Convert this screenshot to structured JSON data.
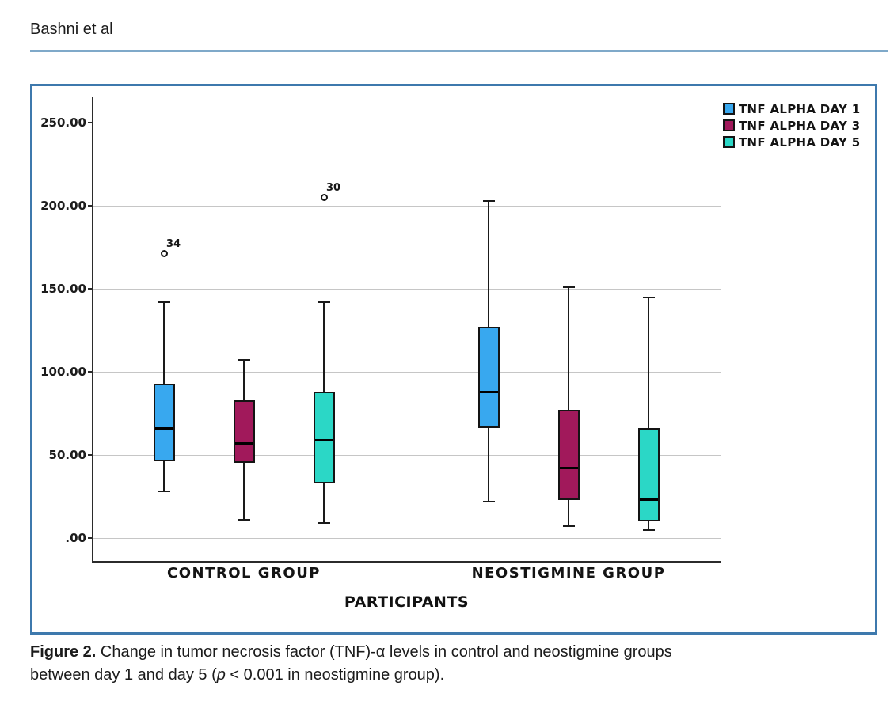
{
  "page": {
    "running_head": "Bashni et al"
  },
  "figure": {
    "caption": {
      "label": "Figure 2.",
      "line1_rest": " Change in tumor necrosis factor (TNF)-α levels in control and neostigmine groups",
      "line2_before_p": "between day 1 and day 5 (",
      "p_symbol": "p",
      "line2_after_p": " < 0.001 in neostigmine group)."
    }
  },
  "chart_data": {
    "type": "boxplot",
    "title": "",
    "xlabel": "PARTICIPANTS",
    "ylabel": "",
    "grid": true,
    "legend_position": "top-right",
    "categories": [
      "CONTROL GROUP",
      "NEOSTIGMINE GROUP"
    ],
    "y_axis": {
      "range": [
        -15,
        265
      ],
      "ticks": [
        {
          "label": "250.00",
          "value": 250
        },
        {
          "label": "200.00",
          "value": 200
        },
        {
          "label": "150.00",
          "value": 150
        },
        {
          "label": "100.00",
          "value": 100
        },
        {
          "label": "50.00",
          "value": 50
        },
        {
          "label": ".00",
          "value": 0
        }
      ]
    },
    "legend": [
      {
        "label": "TNF ALPHA DAY 1",
        "color": "#38A8EF"
      },
      {
        "label": "TNF ALPHA DAY 3",
        "color": "#A1195B"
      },
      {
        "label": "TNF ALPHA DAY 5",
        "color": "#2BD7C6"
      }
    ],
    "series": [
      {
        "name": "TNF ALPHA DAY 1",
        "color": "#38A8EF",
        "boxes": [
          {
            "group": "CONTROL GROUP",
            "whisker_low": 28,
            "q1": 46,
            "median": 66,
            "q3": 93,
            "whisker_high": 142,
            "outliers": [
              {
                "value": 171,
                "label": "34"
              }
            ]
          },
          {
            "group": "NEOSTIGMINE GROUP",
            "whisker_low": 22,
            "q1": 66,
            "median": 88,
            "q3": 127,
            "whisker_high": 203,
            "outliers": []
          }
        ]
      },
      {
        "name": "TNF ALPHA DAY 3",
        "color": "#A1195B",
        "boxes": [
          {
            "group": "CONTROL GROUP",
            "whisker_low": 11,
            "q1": 45,
            "median": 57,
            "q3": 83,
            "whisker_high": 107,
            "outliers": []
          },
          {
            "group": "NEOSTIGMINE GROUP",
            "whisker_low": 7,
            "q1": 23,
            "median": 42,
            "q3": 77,
            "whisker_high": 151,
            "outliers": []
          }
        ]
      },
      {
        "name": "TNF ALPHA DAY 5",
        "color": "#2BD7C6",
        "boxes": [
          {
            "group": "CONTROL GROUP",
            "whisker_low": 9,
            "q1": 33,
            "median": 59,
            "q3": 88,
            "whisker_high": 142,
            "outliers": [
              {
                "value": 205,
                "label": "30"
              }
            ]
          },
          {
            "group": "NEOSTIGMINE GROUP",
            "whisker_low": 5,
            "q1": 10,
            "median": 23,
            "q3": 66,
            "whisker_high": 145,
            "outliers": []
          }
        ]
      }
    ]
  }
}
